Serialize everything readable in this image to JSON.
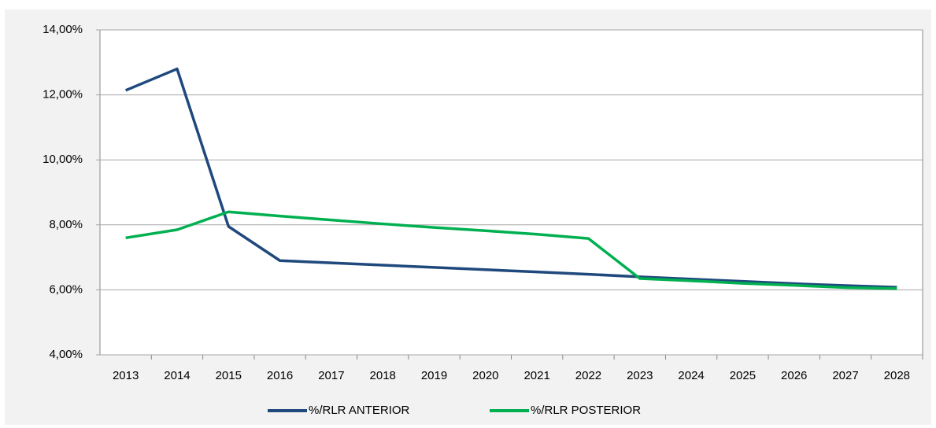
{
  "chart_data": {
    "type": "line",
    "categories": [
      "2013",
      "2014",
      "2015",
      "2016",
      "2017",
      "2018",
      "2019",
      "2020",
      "2021",
      "2022",
      "2023",
      "2024",
      "2025",
      "2026",
      "2027",
      "2028"
    ],
    "series": [
      {
        "name": "%/RLR ANTERIOR",
        "color": "#1f497d",
        "values": [
          12.14,
          12.8,
          7.95,
          6.9,
          6.83,
          6.76,
          6.69,
          6.62,
          6.55,
          6.48,
          6.4,
          6.33,
          6.26,
          6.19,
          6.13,
          6.08
        ]
      },
      {
        "name": "%/RLR POSTERIOR",
        "color": "#00b050",
        "values": [
          7.6,
          7.85,
          8.4,
          8.27,
          8.15,
          8.03,
          7.92,
          7.82,
          7.71,
          7.58,
          6.35,
          6.28,
          6.2,
          6.14,
          6.07,
          6.04
        ]
      }
    ],
    "ylim": [
      4,
      14
    ],
    "yticks": [
      {
        "value": 4,
        "label": "4,00%"
      },
      {
        "value": 6,
        "label": "6,00%"
      },
      {
        "value": 8,
        "label": "8,00%"
      },
      {
        "value": 10,
        "label": "10,00%"
      },
      {
        "value": 12,
        "label": "12,00%"
      },
      {
        "value": 14,
        "label": "14,00%"
      }
    ],
    "grid": true,
    "legend": "bottom"
  }
}
